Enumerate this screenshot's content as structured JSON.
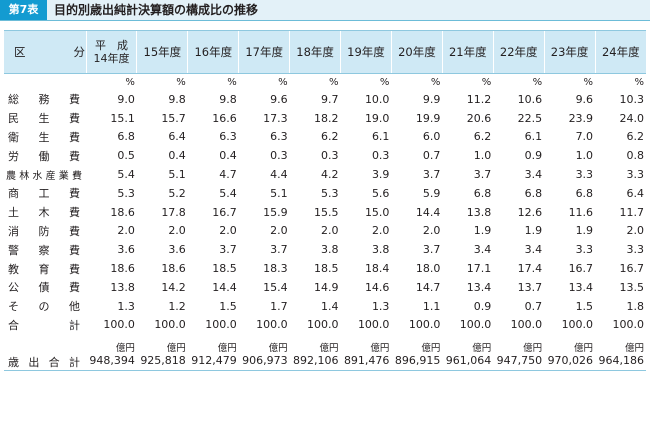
{
  "badge": "第7表",
  "title": "目的別歳出純計決算額の構成比の推移",
  "header": {
    "label_left": "区",
    "label_right": "分",
    "first_year_line1": "平　成",
    "first_year_line2": "14年度",
    "years": [
      "15年度",
      "16年度",
      "17年度",
      "18年度",
      "19年度",
      "20年度",
      "21年度",
      "22年度",
      "23年度",
      "24年度"
    ]
  },
  "unit_percent": "%",
  "rows": [
    {
      "label": "総務費",
      "values": [
        "9.0",
        "9.8",
        "9.8",
        "9.6",
        "9.7",
        "10.0",
        "9.9",
        "11.2",
        "10.6",
        "9.6",
        "10.3"
      ]
    },
    {
      "label": "民生費",
      "values": [
        "15.1",
        "15.7",
        "16.6",
        "17.3",
        "18.2",
        "19.0",
        "19.9",
        "20.6",
        "22.5",
        "23.9",
        "24.0"
      ]
    },
    {
      "label": "衛生費",
      "values": [
        "6.8",
        "6.4",
        "6.3",
        "6.3",
        "6.2",
        "6.1",
        "6.0",
        "6.2",
        "6.1",
        "7.0",
        "6.2"
      ]
    },
    {
      "label": "労働費",
      "values": [
        "0.5",
        "0.4",
        "0.4",
        "0.3",
        "0.3",
        "0.3",
        "0.7",
        "1.0",
        "0.9",
        "1.0",
        "0.8"
      ]
    },
    {
      "label": "農林水産業費",
      "values": [
        "5.4",
        "5.1",
        "4.7",
        "4.4",
        "4.2",
        "3.9",
        "3.7",
        "3.7",
        "3.4",
        "3.3",
        "3.3"
      ]
    },
    {
      "label": "商工費",
      "values": [
        "5.3",
        "5.2",
        "5.4",
        "5.1",
        "5.3",
        "5.6",
        "5.9",
        "6.8",
        "6.8",
        "6.8",
        "6.4"
      ]
    },
    {
      "label": "土木費",
      "values": [
        "18.6",
        "17.8",
        "16.7",
        "15.9",
        "15.5",
        "15.0",
        "14.4",
        "13.8",
        "12.6",
        "11.6",
        "11.7"
      ]
    },
    {
      "label": "消防費",
      "values": [
        "2.0",
        "2.0",
        "2.0",
        "2.0",
        "2.0",
        "2.0",
        "2.0",
        "1.9",
        "1.9",
        "1.9",
        "2.0"
      ]
    },
    {
      "label": "警察費",
      "values": [
        "3.6",
        "3.6",
        "3.7",
        "3.7",
        "3.8",
        "3.8",
        "3.7",
        "3.4",
        "3.4",
        "3.3",
        "3.3"
      ]
    },
    {
      "label": "教育費",
      "values": [
        "18.6",
        "18.6",
        "18.5",
        "18.3",
        "18.5",
        "18.4",
        "18.0",
        "17.1",
        "17.4",
        "16.7",
        "16.7"
      ]
    },
    {
      "label": "公債費",
      "values": [
        "13.8",
        "14.2",
        "14.4",
        "15.4",
        "14.9",
        "14.6",
        "14.7",
        "13.4",
        "13.7",
        "13.4",
        "13.5"
      ]
    },
    {
      "label": "その他",
      "values": [
        "1.3",
        "1.2",
        "1.5",
        "1.7",
        "1.4",
        "1.3",
        "1.1",
        "0.9",
        "0.7",
        "1.5",
        "1.8"
      ]
    },
    {
      "label": "合計",
      "values": [
        "100.0",
        "100.0",
        "100.0",
        "100.0",
        "100.0",
        "100.0",
        "100.0",
        "100.0",
        "100.0",
        "100.0",
        "100.0"
      ]
    }
  ],
  "unit_oku": "億円",
  "total_row": {
    "label": "歳出合計",
    "values": [
      "948,394",
      "925,818",
      "912,479",
      "906,973",
      "892,106",
      "891,476",
      "896,915",
      "961,064",
      "947,750",
      "970,026",
      "964,186"
    ]
  }
}
